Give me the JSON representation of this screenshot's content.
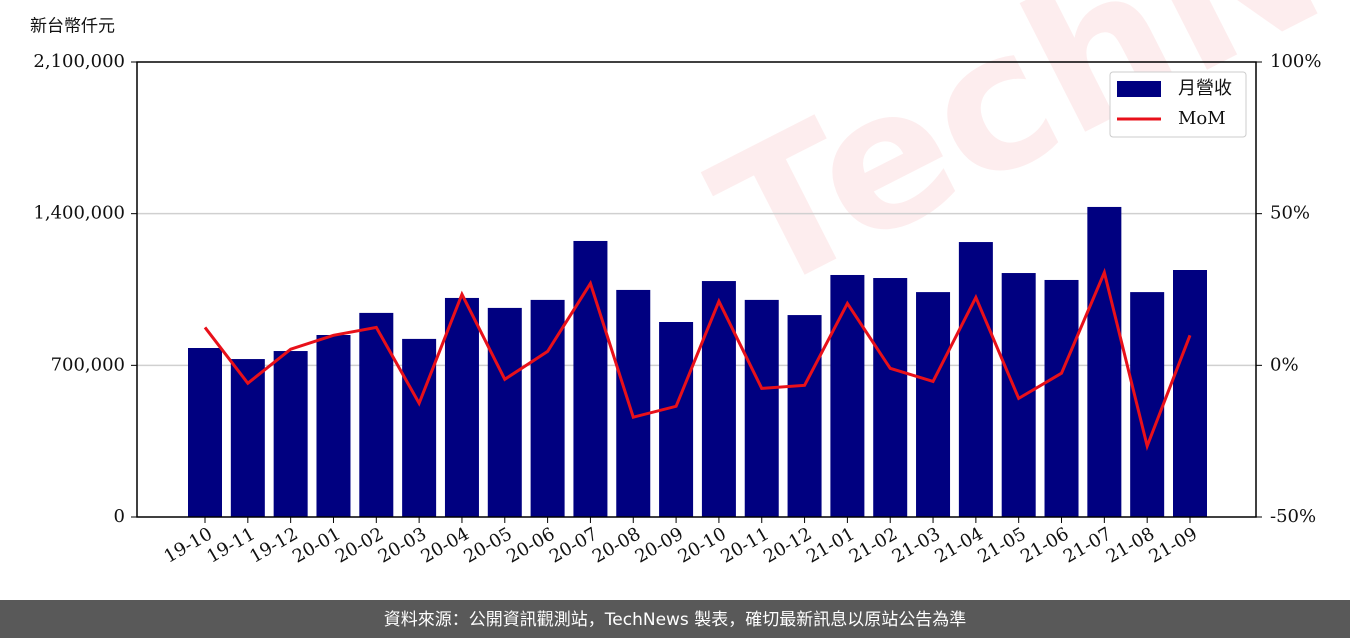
{
  "chart_data": {
    "type": "bar",
    "y_label": "新台幣仟元",
    "categories": [
      "19-10",
      "19-11",
      "19-12",
      "20-01",
      "20-02",
      "20-03",
      "20-04",
      "20-05",
      "20-06",
      "20-07",
      "20-08",
      "20-09",
      "20-10",
      "20-11",
      "20-12",
      "21-01",
      "21-02",
      "21-03",
      "21-04",
      "21-05",
      "21-06",
      "21-07",
      "21-08",
      "21-09"
    ],
    "series": [
      {
        "name": "月營收",
        "type": "bar",
        "color": "#000080",
        "values": [
          780000,
          729000,
          766000,
          840000,
          942000,
          822000,
          1011000,
          965000,
          1002000,
          1274000,
          1048000,
          900000,
          1089000,
          1002000,
          932000,
          1117000,
          1103000,
          1038000,
          1269000,
          1126000,
          1094000,
          1431000,
          1038000,
          1140000
        ]
      },
      {
        "name": "MoM",
        "type": "line",
        "color": "#e8101a",
        "axis": "y2",
        "values": [
          12.5,
          -5.9,
          5.3,
          9.9,
          12.5,
          -12.5,
          23.4,
          -4.6,
          4.6,
          27.0,
          -17.1,
          -13.5,
          21.1,
          -7.6,
          -6.6,
          20.4,
          -1.0,
          -5.3,
          22.4,
          -10.9,
          -2.6,
          30.6,
          -26.6,
          9.9
        ]
      }
    ],
    "ylim": [
      0,
      2100000
    ],
    "yticks": [
      0,
      {
        "value": 700000,
        "label": "700,000"
      },
      {
        "value": 1400000,
        "label": "1,400,000"
      },
      {
        "value": 2100000,
        "label": "2,100,000"
      }
    ],
    "y2lim": [
      -50,
      100
    ],
    "y2ticks": [
      {
        "value": -50,
        "label": "-50%"
      },
      {
        "value": 0,
        "label": "0%"
      },
      {
        "value": 50,
        "label": "50%"
      },
      {
        "value": 100,
        "label": "100%"
      }
    ],
    "grid": true,
    "legend": "upper right"
  },
  "watermark": "TechNews",
  "footer": "資料來源：公開資訊觀測站，TechNews 製表，確切最新訊息以原站公告為準"
}
